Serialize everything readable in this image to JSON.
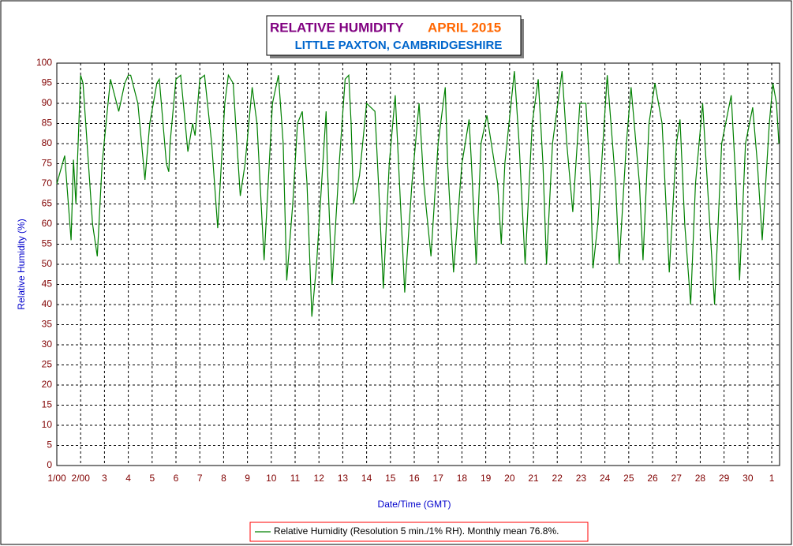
{
  "chart_data": {
    "type": "line",
    "title": "RELATIVE HUMIDITY",
    "subtitle": "APRIL 2015",
    "location": "LITTLE PAXTON, CAMBRIDGESHIRE",
    "x_label": "Date/Time (GMT)",
    "y_label": "Relative Humidity (%)",
    "x": [
      0,
      0.33,
      0.6,
      0.7,
      0.8,
      1.0,
      1.1,
      1.5,
      1.7,
      1.9,
      2.15,
      2.25,
      2.6,
      2.85,
      3.0,
      3.1,
      3.4,
      3.7,
      3.9,
      4.2,
      4.3,
      4.6,
      4.7,
      4.75,
      5.0,
      5.2,
      5.5,
      5.7,
      5.8,
      6.0,
      6.2,
      6.5,
      6.75,
      7.05,
      7.2,
      7.4,
      7.7,
      7.9,
      8.2,
      8.4,
      8.7,
      9.05,
      9.3,
      9.5,
      9.65,
      9.9,
      10.1,
      10.3,
      10.5,
      10.7,
      10.9,
      11.3,
      11.35,
      11.55,
      11.85,
      12.1,
      12.25,
      12.35,
      12.45,
      12.7,
      13.0,
      13.35,
      13.5,
      13.7,
      13.95,
      14.2,
      14.3,
      14.6,
      14.9,
      15.2,
      15.4,
      15.7,
      16.0,
      16.3,
      16.4,
      16.65,
      17.0,
      17.3,
      17.4,
      17.6,
      17.8,
      18.05,
      18.5,
      18.65,
      18.8,
      19.2,
      19.4,
      19.65,
      19.95,
      20.2,
      20.4,
      20.55,
      20.8,
      21.2,
      21.4,
      21.65,
      21.95,
      22.2,
      22.4,
      22.5,
      22.7,
      23.1,
      23.45,
      23.6,
      23.9,
      24.1,
      24.45,
      24.6,
      24.85,
      25.1,
      25.4,
      25.7,
      26.0,
      26.15,
      26.35,
      26.6,
      26.8,
      27.1,
      27.3,
      27.6,
      27.9,
      28.3,
      28.5,
      28.65,
      28.9,
      29.2,
      29.4,
      29.6,
      29.9,
      30.05,
      30.2,
      30.3
    ],
    "series": [
      {
        "name": "Relative Humidity (Resolution 5 min./1% RH). Monthly mean 76.8%.",
        "color": "#008000",
        "values": [
          70,
          77,
          56,
          76,
          65,
          97,
          95,
          60,
          52,
          75,
          90,
          96,
          88,
          95,
          97,
          97,
          90,
          71,
          85,
          95,
          96,
          75,
          73,
          80,
          96,
          97,
          78,
          85,
          82,
          96,
          97,
          80,
          59,
          90,
          97,
          95,
          67,
          75,
          94,
          85,
          51,
          90,
          97,
          80,
          46,
          65,
          85,
          88,
          70,
          37,
          50,
          88,
          75,
          45,
          75,
          96,
          97,
          85,
          65,
          72,
          90,
          88,
          70,
          44,
          75,
          92,
          80,
          43,
          70,
          90,
          70,
          52,
          80,
          94,
          75,
          48,
          75,
          86,
          75,
          50,
          80,
          87,
          70,
          55,
          75,
          98,
          80,
          50,
          85,
          96,
          75,
          50,
          80,
          98,
          80,
          63,
          90,
          90,
          70,
          49,
          60,
          97,
          70,
          50,
          80,
          94,
          70,
          51,
          85,
          95,
          85,
          48,
          80,
          86,
          60,
          40,
          70,
          90,
          70,
          40,
          80,
          92,
          70,
          46,
          80,
          89,
          75,
          56,
          85,
          95,
          90,
          80
        ]
      }
    ],
    "xlim": [
      0,
      30.33
    ],
    "ylim": [
      0,
      100
    ],
    "xticks": [
      {
        "value": 0,
        "label": "1/00"
      },
      {
        "value": 1,
        "label": "2/00"
      },
      {
        "value": 2,
        "label": "3"
      },
      {
        "value": 3,
        "label": "4"
      },
      {
        "value": 4,
        "label": "5"
      },
      {
        "value": 5,
        "label": "6"
      },
      {
        "value": 6,
        "label": "7"
      },
      {
        "value": 7,
        "label": "8"
      },
      {
        "value": 8,
        "label": "9"
      },
      {
        "value": 9,
        "label": "10"
      },
      {
        "value": 10,
        "label": "11"
      },
      {
        "value": 11,
        "label": "12"
      },
      {
        "value": 12,
        "label": "13"
      },
      {
        "value": 13,
        "label": "14"
      },
      {
        "value": 14,
        "label": "15"
      },
      {
        "value": 15,
        "label": "16"
      },
      {
        "value": 16,
        "label": "17"
      },
      {
        "value": 17,
        "label": "18"
      },
      {
        "value": 18,
        "label": "19"
      },
      {
        "value": 19,
        "label": "20"
      },
      {
        "value": 20,
        "label": "21"
      },
      {
        "value": 21,
        "label": "22"
      },
      {
        "value": 22,
        "label": "23"
      },
      {
        "value": 23,
        "label": "24"
      },
      {
        "value": 24,
        "label": "25"
      },
      {
        "value": 25,
        "label": "26"
      },
      {
        "value": 26,
        "label": "27"
      },
      {
        "value": 27,
        "label": "28"
      },
      {
        "value": 28,
        "label": "29"
      },
      {
        "value": 29,
        "label": "30"
      },
      {
        "value": 30,
        "label": "1"
      }
    ],
    "yticks": [
      0,
      5,
      10,
      15,
      20,
      25,
      30,
      35,
      40,
      45,
      50,
      55,
      60,
      65,
      70,
      75,
      80,
      85,
      90,
      95,
      100
    ],
    "grid": true
  }
}
